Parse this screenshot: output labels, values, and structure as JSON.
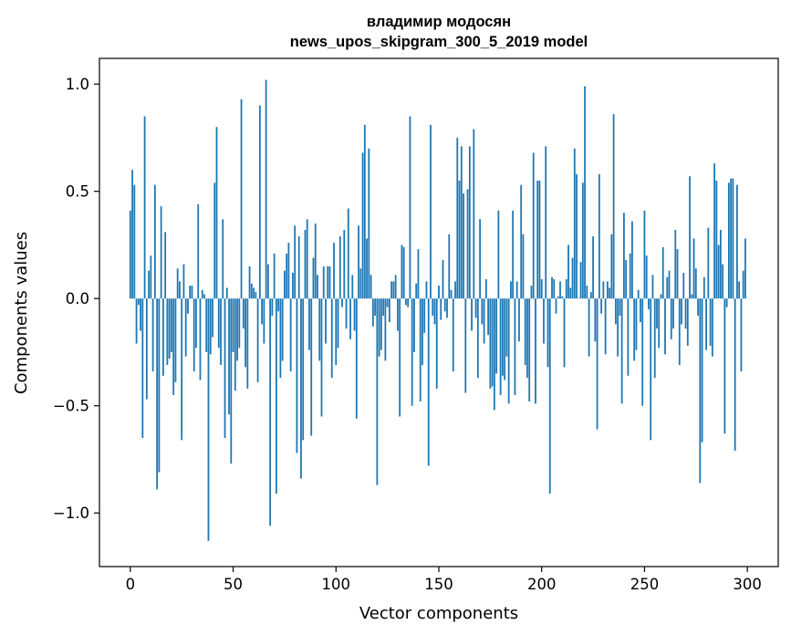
{
  "chart_data": {
    "type": "bar",
    "title": "владимир модосян",
    "subtitle": "news_upos_skipgram_300_5_2019 model",
    "xlabel": "Vector components",
    "ylabel": "Components values",
    "xlim": [
      -15,
      315
    ],
    "ylim": [
      -1.25,
      1.12
    ],
    "xticks": [
      0,
      50,
      100,
      150,
      200,
      250,
      300
    ],
    "xtick_labels": [
      "0",
      "50",
      "100",
      "150",
      "200",
      "250",
      "300"
    ],
    "yticks": [
      -1.0,
      -0.5,
      0.0,
      0.5,
      1.0
    ],
    "ytick_labels": [
      "−1.0",
      "−0.5",
      "0.0",
      "0.5",
      "1.0"
    ],
    "grid": false,
    "bar_color": "#1f77b4",
    "values": [
      0.41,
      0.6,
      0.53,
      -0.21,
      -0.03,
      -0.15,
      -0.65,
      0.85,
      -0.47,
      0.13,
      0.2,
      -0.34,
      0.53,
      -0.89,
      -0.81,
      0.43,
      -0.36,
      0.31,
      -0.31,
      -0.28,
      -0.25,
      -0.45,
      -0.39,
      0.14,
      0.08,
      -0.66,
      0.16,
      -0.27,
      -0.07,
      0.06,
      0.06,
      -0.34,
      -0.23,
      0.44,
      -0.38,
      0.04,
      0.02,
      -0.25,
      -1.13,
      -0.26,
      -0.18,
      0.54,
      0.8,
      -0.23,
      -0.31,
      0.37,
      -0.65,
      0.05,
      -0.54,
      -0.77,
      -0.25,
      -0.43,
      -0.29,
      -0.23,
      0.93,
      -0.14,
      -0.32,
      -0.42,
      0.15,
      0.07,
      0.05,
      0.03,
      -0.39,
      0.9,
      -0.12,
      -0.21,
      1.02,
      0.16,
      -1.06,
      -0.08,
      0.21,
      -0.91,
      -0.06,
      -0.37,
      -0.29,
      0.13,
      0.21,
      0.26,
      -0.34,
      0.12,
      0.34,
      -0.72,
      0.29,
      -0.84,
      -0.66,
      0.32,
      0.37,
      -0.24,
      -0.64,
      0.19,
      0.35,
      0.11,
      -0.29,
      -0.55,
      0.15,
      -0.21,
      0.15,
      0.15,
      -0.37,
      0.26,
      -0.31,
      -0.23,
      0.29,
      -0.04,
      0.32,
      -0.14,
      0.42,
      -0.19,
      0.11,
      -0.15,
      -0.56,
      0.34,
      0.14,
      0.68,
      0.81,
      0.28,
      0.7,
      0.11,
      -0.13,
      -0.08,
      -0.87,
      -0.27,
      -0.24,
      -0.08,
      -0.29,
      -0.04,
      -0.11,
      0.08,
      0.08,
      0.11,
      -0.15,
      -0.55,
      0.25,
      0.24,
      -0.03,
      -0.04,
      0.85,
      -0.5,
      -0.25,
      0.07,
      0.23,
      -0.48,
      -0.31,
      -0.16,
      0.08,
      -0.78,
      0.81,
      -0.08,
      -0.12,
      -0.42,
      0.06,
      -0.1,
      0.18,
      -0.06,
      -0.09,
      0.3,
      0.04,
      -0.34,
      0.08,
      0.75,
      0.55,
      0.71,
      0.49,
      -0.44,
      0.51,
      0.71,
      -0.15,
      0.79,
      -0.09,
      -0.37,
      0.37,
      -0.12,
      -0.21,
      0.09,
      -0.17,
      -0.42,
      -0.41,
      -0.52,
      -0.35,
      0.41,
      -0.45,
      -0.36,
      -0.38,
      -0.27,
      -0.49,
      0.08,
      0.41,
      -0.45,
      0.08,
      -0.2,
      0.53,
      0.3,
      -0.31,
      -0.37,
      -0.48,
      0.06,
      0.68,
      -0.49,
      0.55,
      0.55,
      0.09,
      -0.21,
      0.71,
      -0.32,
      -0.91,
      0.1,
      0.09,
      -0.07,
      0.01,
      0.08,
      0.01,
      -0.32,
      0.09,
      0.25,
      0.05,
      0.19,
      0.7,
      0.58,
      0.0,
      0.17,
      0.54,
      0.99,
      0.06,
      -0.27,
      0.03,
      0.29,
      -0.2,
      -0.61,
      0.58,
      -0.07,
      0.08,
      -0.26,
      0.08,
      0.05,
      0.3,
      0.86,
      -0.12,
      -0.27,
      -0.08,
      -0.49,
      0.4,
      0.18,
      -0.36,
      0.21,
      0.36,
      -0.29,
      -0.24,
      0.04,
      -0.11,
      -0.5,
      0.41,
      0.2,
      -0.05,
      -0.66,
      0.11,
      -0.37,
      -0.14,
      -0.23,
      0.02,
      0.24,
      -0.26,
      0.1,
      0.13,
      -0.19,
      -0.14,
      0.32,
      0.23,
      -0.31,
      -0.12,
      0.12,
      -0.14,
      -0.22,
      0.57,
      0.02,
      0.28,
      0.14,
      -0.08,
      -0.86,
      -0.67,
      0.1,
      -0.24,
      0.33,
      -0.22,
      -0.27,
      0.63,
      0.55,
      0.25,
      0.32,
      0.16,
      -0.63,
      -0.04,
      0.54,
      0.56,
      0.56,
      -0.71,
      0.53,
      0.08,
      -0.34,
      0.13,
      0.28
    ]
  }
}
